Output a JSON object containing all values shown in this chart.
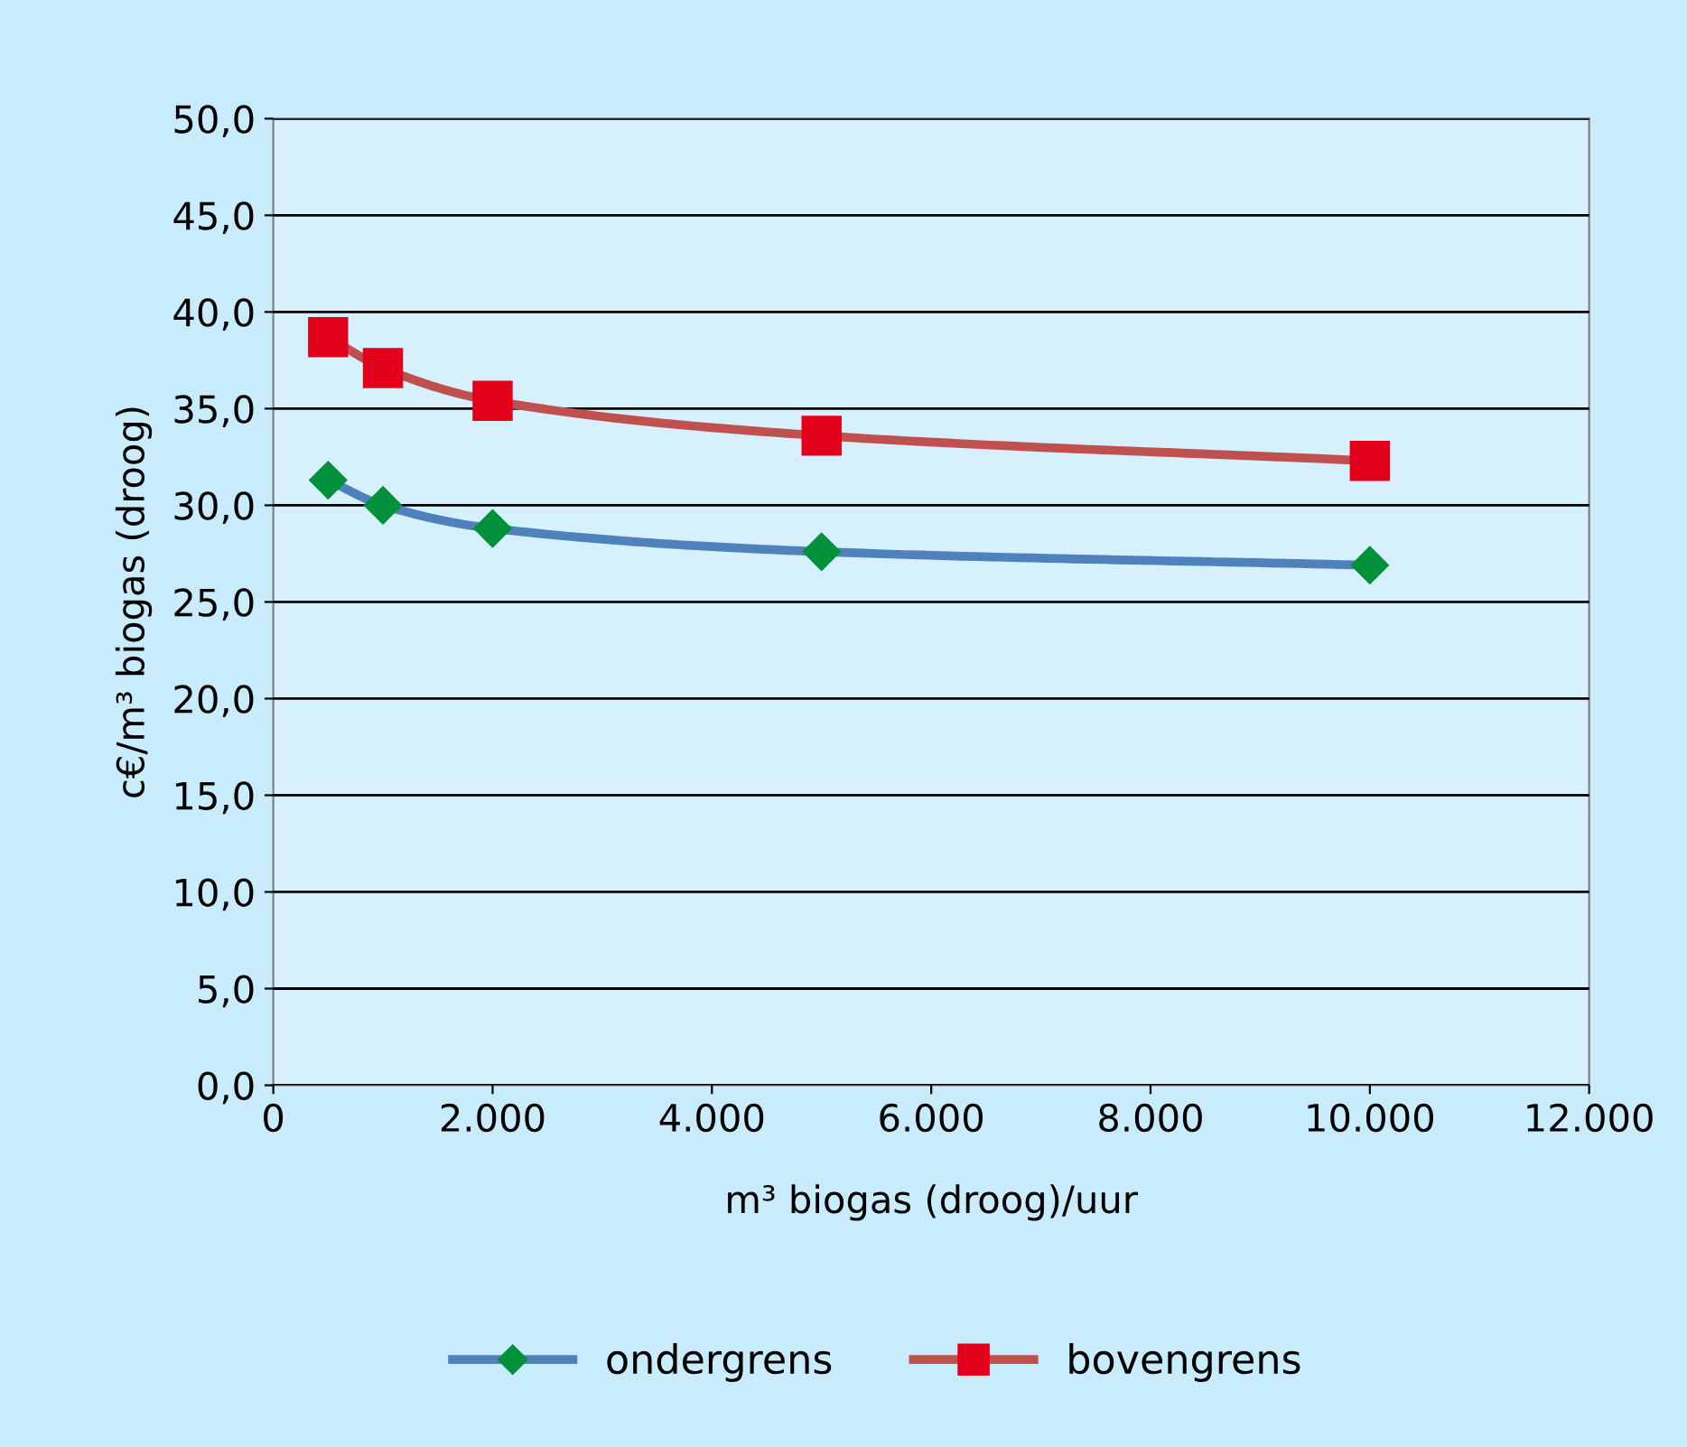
{
  "chart_data": {
    "type": "line",
    "xlabel": "m³ biogas (droog)/uur",
    "ylabel": "c€/m³ biogas (droog)",
    "x": [
      500,
      1000,
      2000,
      5000,
      10000
    ],
    "series": [
      {
        "name": "ondergrens",
        "color": "#4f81bd",
        "colors": [
          "#00913a",
          "#00913a",
          "#00913a",
          "#00913a",
          "#00913a"
        ],
        "marker": "diamond",
        "values": [
          31.3,
          30.0,
          28.8,
          27.6,
          26.9
        ]
      },
      {
        "name": "bovengrens",
        "color": "#c0504d",
        "colors": [
          "#e2001a",
          "#e2001a",
          "#e2001a",
          "#e2001a",
          "#e2001a"
        ],
        "marker": "square",
        "values": [
          38.7,
          37.1,
          35.4,
          33.6,
          32.3
        ]
      }
    ],
    "xlim": [
      0,
      12000
    ],
    "xticks": [
      0,
      {
        "value": 2000,
        "label": "2.000"
      },
      {
        "value": 4000,
        "label": "4.000"
      },
      {
        "value": 6000,
        "label": "6.000"
      },
      {
        "value": 8000,
        "label": "8.000"
      },
      {
        "value": 10000,
        "label": "10.000"
      },
      {
        "value": 12000,
        "label": "12.000"
      }
    ],
    "ylim": [
      0,
      50
    ],
    "yticks": [
      {
        "value": 0,
        "label": "0,0"
      },
      {
        "value": 5,
        "label": "5,0"
      },
      {
        "value": 10,
        "label": "10,0"
      },
      {
        "value": 15,
        "label": "15,0"
      },
      {
        "value": 20,
        "label": "20,0"
      },
      {
        "value": 25,
        "label": "25,0"
      },
      {
        "value": 30,
        "label": "30,0"
      },
      {
        "value": 35,
        "label": "35,0"
      },
      {
        "value": 40,
        "label": "40,0"
      },
      {
        "value": 45,
        "label": "45,0"
      },
      {
        "value": 50,
        "label": "50,0"
      }
    ],
    "grid": "y",
    "legend": "bottom"
  }
}
